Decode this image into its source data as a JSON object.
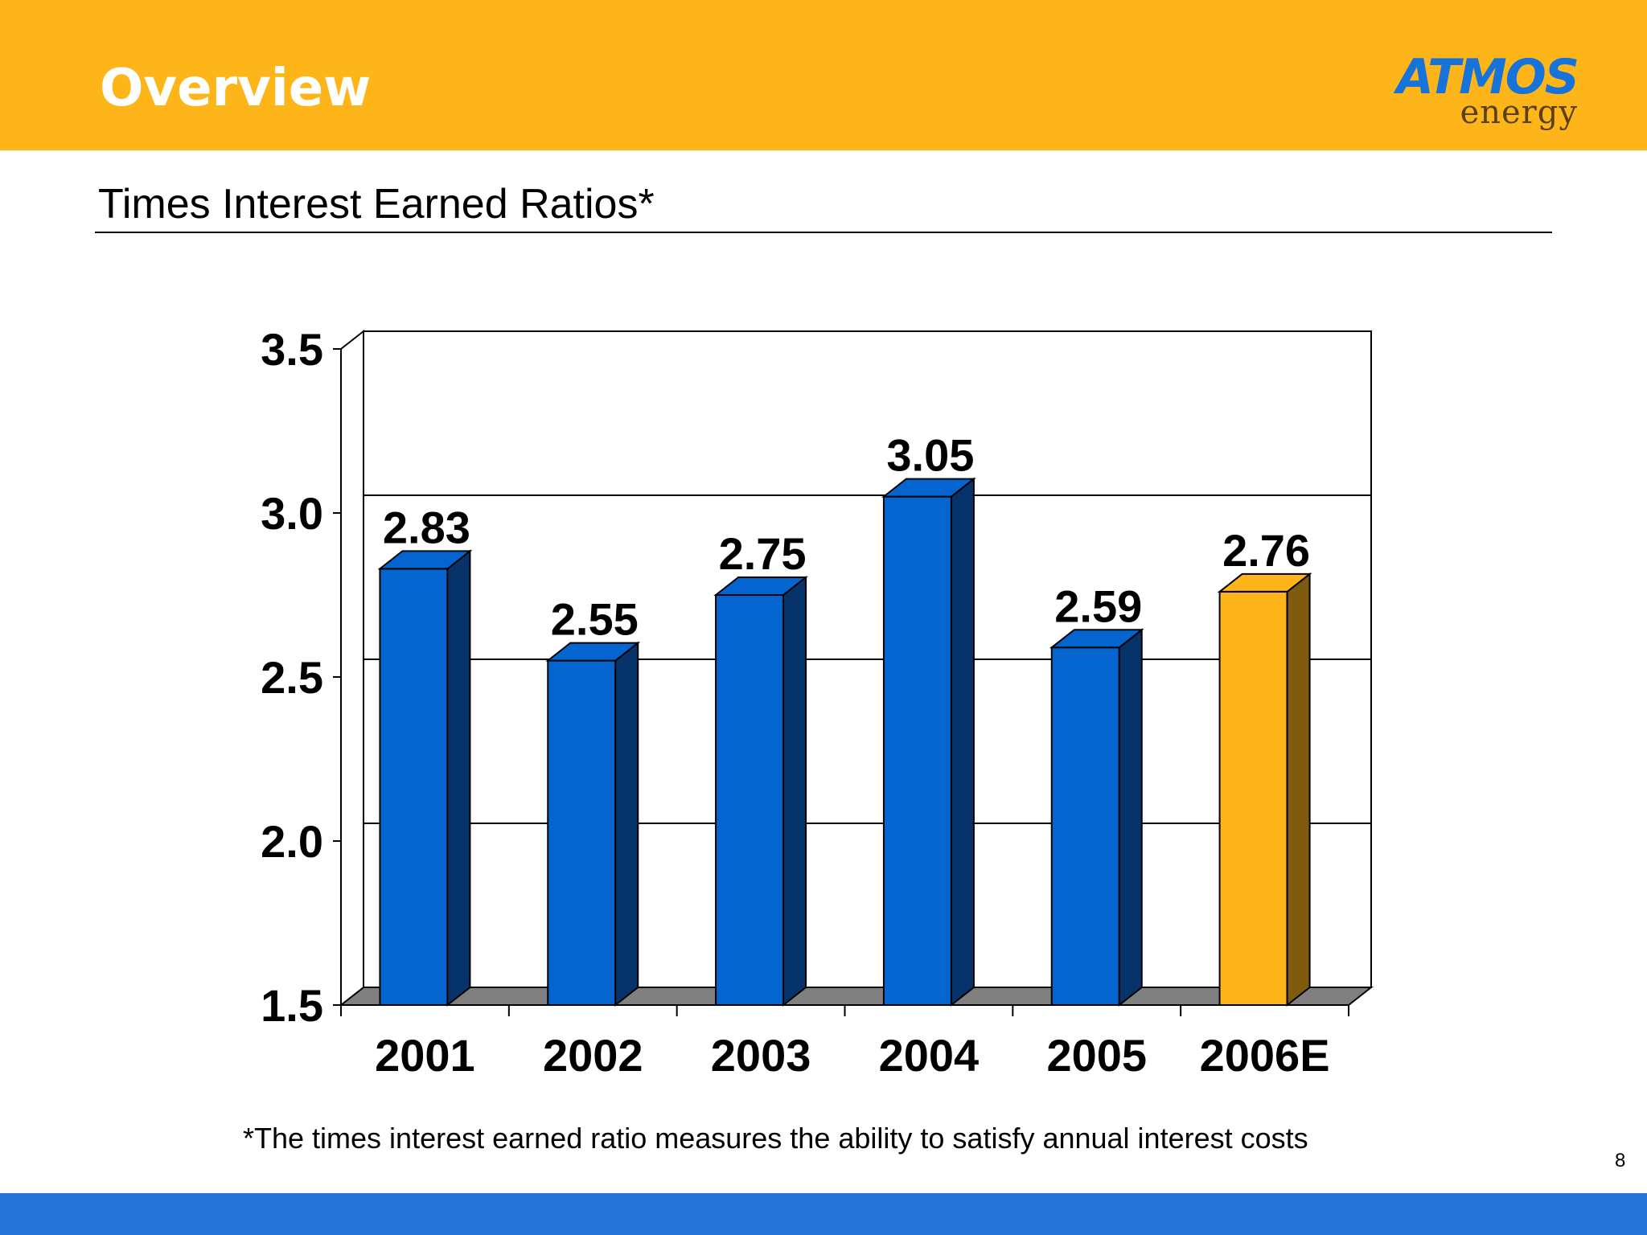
{
  "header": {
    "title": "Overview"
  },
  "logo": {
    "brand": "ATMOS",
    "tagline": "energy"
  },
  "slide": {
    "subtitle": "Times Interest Earned Ratios*",
    "footnote": "*The times interest earned ratio measures the ability to satisfy annual interest costs",
    "page_number": "8"
  },
  "colors": {
    "header": "#FDB519",
    "footer": "#2473D9",
    "bar_actual": "#0565D0",
    "bar_actual_side": "#06336A",
    "bar_estimate": "#FDB519",
    "bar_estimate_side": "#7F5B10",
    "floor": "#808080"
  },
  "chart_data": {
    "type": "bar",
    "title": "Times Interest Earned Ratios*",
    "categories": [
      "2001",
      "2002",
      "2003",
      "2004",
      "2005",
      "2006E"
    ],
    "values": [
      2.83,
      2.55,
      2.75,
      3.05,
      2.59,
      2.76
    ],
    "data_labels": [
      "2.83",
      "2.55",
      "2.75",
      "3.05",
      "2.59",
      "2.76"
    ],
    "ylim": [
      1.5,
      3.5
    ],
    "yticks": [
      "1.5",
      "2.0",
      "2.5",
      "3.0",
      "3.5"
    ],
    "ytick_values": [
      1.5,
      2.0,
      2.5,
      3.0,
      3.5
    ],
    "xlabel": "",
    "ylabel": "",
    "grid": true,
    "legend": "none",
    "highlight_category": "2006E"
  }
}
